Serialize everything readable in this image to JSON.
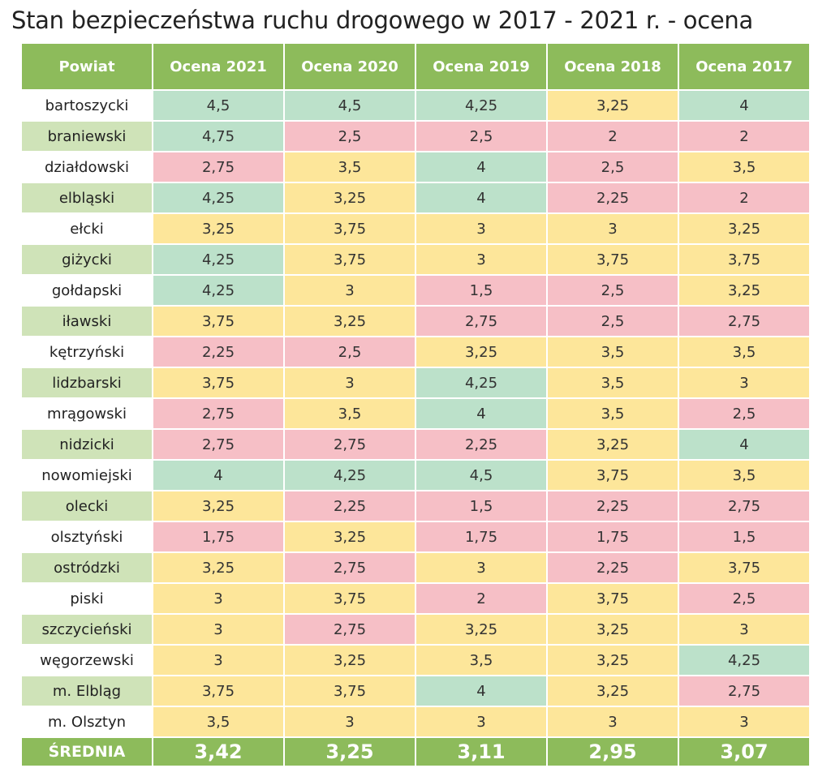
{
  "title": "Stan bezpieczeństwa ruchu drogowego w 2017 - 2021 r. - ocena",
  "table": {
    "headers": [
      "Powiat",
      "Ocena 2021",
      "Ocena 2020",
      "Ocena 2019",
      "Ocena 2018",
      "Ocena 2017"
    ],
    "rows": [
      {
        "name": "bartoszycki",
        "values": [
          "4,5",
          "4,5",
          "4,25",
          "3,25",
          "4"
        ],
        "levels": [
          "g",
          "g",
          "g",
          "y",
          "g"
        ]
      },
      {
        "name": "braniewski",
        "values": [
          "4,75",
          "2,5",
          "2,5",
          "2",
          "2"
        ],
        "levels": [
          "g",
          "r",
          "r",
          "r",
          "r"
        ]
      },
      {
        "name": "działdowski",
        "values": [
          "2,75",
          "3,5",
          "4",
          "2,5",
          "3,5"
        ],
        "levels": [
          "r",
          "y",
          "g",
          "r",
          "y"
        ]
      },
      {
        "name": "elbląski",
        "values": [
          "4,25",
          "3,25",
          "4",
          "2,25",
          "2"
        ],
        "levels": [
          "g",
          "y",
          "g",
          "r",
          "r"
        ]
      },
      {
        "name": "ełcki",
        "values": [
          "3,25",
          "3,75",
          "3",
          "3",
          "3,25"
        ],
        "levels": [
          "y",
          "y",
          "y",
          "y",
          "y"
        ]
      },
      {
        "name": "giżycki",
        "values": [
          "4,25",
          "3,75",
          "3",
          "3,75",
          "3,75"
        ],
        "levels": [
          "g",
          "y",
          "y",
          "y",
          "y"
        ]
      },
      {
        "name": "gołdapski",
        "values": [
          "4,25",
          "3",
          "1,5",
          "2,5",
          "3,25"
        ],
        "levels": [
          "g",
          "y",
          "r",
          "r",
          "y"
        ]
      },
      {
        "name": "iławski",
        "values": [
          "3,75",
          "3,25",
          "2,75",
          "2,5",
          "2,75"
        ],
        "levels": [
          "y",
          "y",
          "r",
          "r",
          "r"
        ]
      },
      {
        "name": "kętrzyński",
        "values": [
          "2,25",
          "2,5",
          "3,25",
          "3,5",
          "3,5"
        ],
        "levels": [
          "r",
          "r",
          "y",
          "y",
          "y"
        ]
      },
      {
        "name": "lidzbarski",
        "values": [
          "3,75",
          "3",
          "4,25",
          "3,5",
          "3"
        ],
        "levels": [
          "y",
          "y",
          "g",
          "y",
          "y"
        ]
      },
      {
        "name": "mrągowski",
        "values": [
          "2,75",
          "3,5",
          "4",
          "3,5",
          "2,5"
        ],
        "levels": [
          "r",
          "y",
          "g",
          "y",
          "r"
        ]
      },
      {
        "name": "nidzicki",
        "values": [
          "2,75",
          "2,75",
          "2,25",
          "3,25",
          "4"
        ],
        "levels": [
          "r",
          "r",
          "r",
          "y",
          "g"
        ]
      },
      {
        "name": "nowomiejski",
        "values": [
          "4",
          "4,25",
          "4,5",
          "3,75",
          "3,5"
        ],
        "levels": [
          "g",
          "g",
          "g",
          "y",
          "y"
        ]
      },
      {
        "name": "olecki",
        "values": [
          "3,25",
          "2,25",
          "1,5",
          "2,25",
          "2,75"
        ],
        "levels": [
          "y",
          "r",
          "r",
          "r",
          "r"
        ]
      },
      {
        "name": "olsztyński",
        "values": [
          "1,75",
          "3,25",
          "1,75",
          "1,75",
          "1,5"
        ],
        "levels": [
          "r",
          "y",
          "r",
          "r",
          "r"
        ]
      },
      {
        "name": "ostródzki",
        "values": [
          "3,25",
          "2,75",
          "3",
          "2,25",
          "3,75"
        ],
        "levels": [
          "y",
          "r",
          "y",
          "r",
          "y"
        ]
      },
      {
        "name": "piski",
        "values": [
          "3",
          "3,75",
          "2",
          "3,75",
          "2,5"
        ],
        "levels": [
          "y",
          "y",
          "r",
          "y",
          "r"
        ]
      },
      {
        "name": "szczycieński",
        "values": [
          "3",
          "2,75",
          "3,25",
          "3,25",
          "3"
        ],
        "levels": [
          "y",
          "r",
          "y",
          "y",
          "y"
        ]
      },
      {
        "name": "węgorzewski",
        "values": [
          "3",
          "3,25",
          "3,5",
          "3,25",
          "4,25"
        ],
        "levels": [
          "y",
          "y",
          "y",
          "y",
          "g"
        ]
      },
      {
        "name": "m. Elbląg",
        "values": [
          "3,75",
          "3,75",
          "4",
          "3,25",
          "2,75"
        ],
        "levels": [
          "y",
          "y",
          "g",
          "y",
          "r"
        ]
      },
      {
        "name": "m. Olsztyn",
        "values": [
          "3,5",
          "3",
          "3",
          "3",
          "3"
        ],
        "levels": [
          "y",
          "y",
          "y",
          "y",
          "y"
        ]
      }
    ],
    "average": {
      "label": "ŚREDNIA",
      "values": [
        "3,42",
        "3,25",
        "3,11",
        "2,95",
        "3,07"
      ]
    }
  },
  "colors": {
    "header": "#8dbb5b",
    "name_alt": "#cfe3b8",
    "green": "#bce1ca",
    "yellow": "#fde69a",
    "red": "#f6bfc6"
  }
}
